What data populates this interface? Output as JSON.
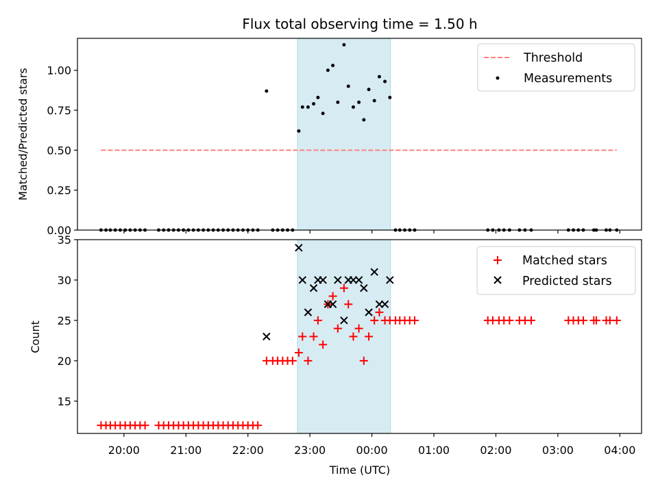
{
  "chart_data": [
    {
      "type": "scatter",
      "title": "Flux total observing time = 1.50 h",
      "ylabel": "Matched/Predicted stars",
      "xlabel": "",
      "ylim": [
        0,
        1.2
      ],
      "yticks": [
        "0.00",
        "0.25",
        "0.50",
        "0.75",
        "1.00"
      ],
      "yticks_values": [
        0,
        0.25,
        0.5,
        0.75,
        1.0
      ],
      "x_unit": "hours since 20:00 UTC",
      "xlim": [
        -0.75,
        8.35
      ],
      "highlight_band": {
        "x_start": 2.8,
        "x_end": 4.3,
        "color": "#add8e6"
      },
      "legend_position": "top-right",
      "legend": {
        "threshold": "Threshold",
        "measurements": "Measurements"
      },
      "threshold": {
        "name": "Threshold",
        "value": 0.5,
        "x_start": -0.37,
        "x_end": 7.95,
        "color": "#ff7f7f"
      },
      "series": [
        {
          "name": "Measurements",
          "color": "#000000",
          "points": [
            [
              -0.37,
              0.0
            ],
            [
              -0.29,
              0.0
            ],
            [
              -0.22,
              0.0
            ],
            [
              -0.14,
              0.0
            ],
            [
              -0.06,
              0.0
            ],
            [
              0.02,
              0.0
            ],
            [
              0.1,
              0.0
            ],
            [
              0.18,
              0.0
            ],
            [
              0.26,
              0.0
            ],
            [
              0.34,
              0.0
            ],
            [
              0.56,
              0.0
            ],
            [
              0.64,
              0.0
            ],
            [
              0.72,
              0.0
            ],
            [
              0.8,
              0.0
            ],
            [
              0.88,
              0.0
            ],
            [
              0.96,
              0.0
            ],
            [
              1.04,
              0.0
            ],
            [
              1.12,
              0.0
            ],
            [
              1.2,
              0.0
            ],
            [
              1.28,
              0.0
            ],
            [
              1.36,
              0.0
            ],
            [
              1.44,
              0.0
            ],
            [
              1.52,
              0.0
            ],
            [
              1.6,
              0.0
            ],
            [
              1.68,
              0.0
            ],
            [
              1.76,
              0.0
            ],
            [
              1.84,
              0.0
            ],
            [
              1.92,
              0.0
            ],
            [
              2.0,
              0.0
            ],
            [
              2.08,
              0.0
            ],
            [
              2.16,
              0.0
            ],
            [
              2.3,
              0.87
            ],
            [
              2.4,
              0.0
            ],
            [
              2.48,
              0.0
            ],
            [
              2.56,
              0.0
            ],
            [
              2.64,
              0.0
            ],
            [
              2.72,
              0.0
            ],
            [
              2.82,
              0.62
            ],
            [
              2.88,
              0.77
            ],
            [
              2.97,
              0.77
            ],
            [
              3.06,
              0.79
            ],
            [
              3.13,
              0.83
            ],
            [
              3.21,
              0.73
            ],
            [
              3.29,
              1.0
            ],
            [
              3.37,
              1.03
            ],
            [
              3.45,
              0.8
            ],
            [
              3.55,
              1.16
            ],
            [
              3.62,
              0.9
            ],
            [
              3.7,
              0.77
            ],
            [
              3.79,
              0.8
            ],
            [
              3.87,
              0.69
            ],
            [
              3.95,
              0.88
            ],
            [
              4.04,
              0.81
            ],
            [
              4.12,
              0.96
            ],
            [
              4.21,
              0.93
            ],
            [
              4.29,
              0.83
            ],
            [
              4.38,
              0.0
            ],
            [
              4.45,
              0.0
            ],
            [
              4.53,
              0.0
            ],
            [
              4.61,
              0.0
            ],
            [
              4.69,
              0.0
            ],
            [
              5.87,
              0.0
            ],
            [
              5.95,
              0.0
            ],
            [
              6.05,
              0.0
            ],
            [
              6.13,
              0.0
            ],
            [
              6.22,
              0.0
            ],
            [
              6.38,
              0.0
            ],
            [
              6.47,
              0.0
            ],
            [
              6.57,
              0.0
            ],
            [
              7.17,
              0.0
            ],
            [
              7.25,
              0.0
            ],
            [
              7.33,
              0.0
            ],
            [
              7.41,
              0.0
            ],
            [
              7.58,
              0.0
            ],
            [
              7.62,
              0.0
            ],
            [
              7.78,
              0.0
            ],
            [
              7.84,
              0.0
            ],
            [
              7.95,
              0.0
            ]
          ]
        }
      ]
    },
    {
      "type": "scatter",
      "title": "",
      "xlabel": "Time (UTC)",
      "ylabel": "Count",
      "ylim": [
        11.0,
        35.0
      ],
      "yticks": [
        "15",
        "20",
        "25",
        "30",
        "35"
      ],
      "yticks_values": [
        15,
        20,
        25,
        30,
        35
      ],
      "x_unit": "hours since 20:00 UTC",
      "xlim": [
        -0.75,
        8.35
      ],
      "xticks": [
        "20:00",
        "21:00",
        "22:00",
        "23:00",
        "00:00",
        "01:00",
        "02:00",
        "03:00",
        "04:00"
      ],
      "xticks_values": [
        0,
        1,
        2,
        3,
        4,
        5,
        6,
        7,
        8
      ],
      "highlight_band": {
        "x_start": 2.8,
        "x_end": 4.3,
        "color": "#add8e6"
      },
      "legend_position": "top-right",
      "legend": {
        "matched": "Matched stars",
        "predicted": "Predicted stars"
      },
      "series": [
        {
          "name": "Matched stars",
          "marker": "plus",
          "color": "#ff0000",
          "points": [
            [
              -0.37,
              12
            ],
            [
              -0.29,
              12
            ],
            [
              -0.22,
              12
            ],
            [
              -0.14,
              12
            ],
            [
              -0.06,
              12
            ],
            [
              0.02,
              12
            ],
            [
              0.1,
              12
            ],
            [
              0.18,
              12
            ],
            [
              0.26,
              12
            ],
            [
              0.34,
              12
            ],
            [
              0.56,
              12
            ],
            [
              0.64,
              12
            ],
            [
              0.72,
              12
            ],
            [
              0.8,
              12
            ],
            [
              0.88,
              12
            ],
            [
              0.96,
              12
            ],
            [
              1.04,
              12
            ],
            [
              1.12,
              12
            ],
            [
              1.2,
              12
            ],
            [
              1.28,
              12
            ],
            [
              1.36,
              12
            ],
            [
              1.44,
              12
            ],
            [
              1.52,
              12
            ],
            [
              1.6,
              12
            ],
            [
              1.68,
              12
            ],
            [
              1.76,
              12
            ],
            [
              1.84,
              12
            ],
            [
              1.92,
              12
            ],
            [
              2.0,
              12
            ],
            [
              2.08,
              12
            ],
            [
              2.16,
              12
            ],
            [
              2.3,
              20
            ],
            [
              2.4,
              20
            ],
            [
              2.48,
              20
            ],
            [
              2.56,
              20
            ],
            [
              2.64,
              20
            ],
            [
              2.72,
              20
            ],
            [
              2.82,
              21
            ],
            [
              2.88,
              23
            ],
            [
              2.97,
              20
            ],
            [
              3.06,
              23
            ],
            [
              3.13,
              25
            ],
            [
              3.21,
              22
            ],
            [
              3.29,
              27
            ],
            [
              3.37,
              28
            ],
            [
              3.45,
              24
            ],
            [
              3.55,
              29
            ],
            [
              3.62,
              27
            ],
            [
              3.7,
              23
            ],
            [
              3.79,
              24
            ],
            [
              3.87,
              20
            ],
            [
              3.95,
              23
            ],
            [
              4.04,
              25
            ],
            [
              4.12,
              26
            ],
            [
              4.21,
              25
            ],
            [
              4.29,
              25
            ],
            [
              4.38,
              25
            ],
            [
              4.45,
              25
            ],
            [
              4.53,
              25
            ],
            [
              4.61,
              25
            ],
            [
              4.69,
              25
            ],
            [
              5.87,
              25
            ],
            [
              5.95,
              25
            ],
            [
              6.05,
              25
            ],
            [
              6.13,
              25
            ],
            [
              6.22,
              25
            ],
            [
              6.38,
              25
            ],
            [
              6.47,
              25
            ],
            [
              6.57,
              25
            ],
            [
              7.17,
              25
            ],
            [
              7.25,
              25
            ],
            [
              7.33,
              25
            ],
            [
              7.41,
              25
            ],
            [
              7.58,
              25
            ],
            [
              7.62,
              25
            ],
            [
              7.78,
              25
            ],
            [
              7.84,
              25
            ],
            [
              7.95,
              25
            ]
          ]
        },
        {
          "name": "Predicted stars",
          "marker": "x",
          "color": "#000000",
          "points": [
            [
              2.3,
              23
            ],
            [
              2.82,
              34
            ],
            [
              2.88,
              30
            ],
            [
              2.97,
              26
            ],
            [
              3.06,
              29
            ],
            [
              3.13,
              30
            ],
            [
              3.21,
              30
            ],
            [
              3.29,
              27
            ],
            [
              3.37,
              27
            ],
            [
              3.45,
              30
            ],
            [
              3.55,
              25
            ],
            [
              3.62,
              30
            ],
            [
              3.7,
              30
            ],
            [
              3.79,
              30
            ],
            [
              3.87,
              29
            ],
            [
              3.95,
              26
            ],
            [
              4.04,
              31
            ],
            [
              4.12,
              27
            ],
            [
              4.21,
              27
            ],
            [
              4.29,
              30
            ]
          ]
        }
      ]
    }
  ]
}
